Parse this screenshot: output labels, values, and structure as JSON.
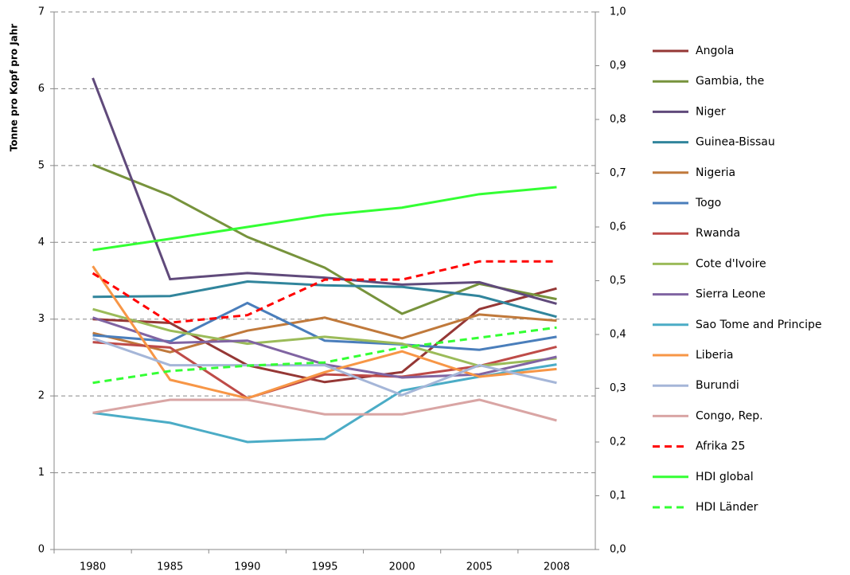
{
  "chart_data": {
    "type": "line",
    "ylabel": "Tonne pro Kopf pro Jahr",
    "categories": [
      "1980",
      "1985",
      "1990",
      "1995",
      "2000",
      "2005",
      "2008"
    ],
    "ylim": [
      0,
      7
    ],
    "yticks": [
      0,
      1,
      2,
      3,
      4,
      5,
      6,
      7
    ],
    "y2lim": [
      0,
      1
    ],
    "y2ticks": [
      {
        "value": 0,
        "label": "0,0"
      },
      {
        "value": 0.1,
        "label": "0,1"
      },
      {
        "value": 0.2,
        "label": "0,2"
      },
      {
        "value": 0.3,
        "label": "0,3"
      },
      {
        "value": 0.4,
        "label": "0,4"
      },
      {
        "value": 0.5,
        "label": "0,5"
      },
      {
        "value": 0.6,
        "label": "0,6"
      },
      {
        "value": 0.7,
        "label": "0,7"
      },
      {
        "value": 0.8,
        "label": "0,8"
      },
      {
        "value": 0.9,
        "label": "0,9"
      },
      {
        "value": 1,
        "label": "1,0"
      }
    ],
    "grid": true,
    "legend": "right",
    "series": [
      {
        "name": "Angola",
        "color": "#953735",
        "values": [
          3.0,
          2.95,
          2.4,
          2.18,
          2.31,
          3.13,
          3.4
        ]
      },
      {
        "name": "Gambia, the",
        "color": "#77933c",
        "values": [
          5.01,
          4.61,
          4.07,
          3.67,
          3.07,
          3.46,
          3.26
        ]
      },
      {
        "name": "Niger",
        "color": "#604a7b",
        "values": [
          6.14,
          3.52,
          3.6,
          3.54,
          3.45,
          3.48,
          3.2
        ]
      },
      {
        "name": "Guinea-Bissau",
        "color": "#31859c",
        "values": [
          3.29,
          3.3,
          3.49,
          3.44,
          3.42,
          3.3,
          3.03
        ]
      },
      {
        "name": "Nigeria",
        "color": "#c0793b",
        "values": [
          2.82,
          2.57,
          2.85,
          3.02,
          2.75,
          3.06,
          2.98
        ]
      },
      {
        "name": "Togo",
        "color": "#4a7ebb",
        "values": [
          2.79,
          2.71,
          3.21,
          2.72,
          2.67,
          2.6,
          2.77
        ]
      },
      {
        "name": "Rwanda",
        "color": "#be4b48",
        "values": [
          2.7,
          2.63,
          1.97,
          2.28,
          2.25,
          2.39,
          2.64
        ]
      },
      {
        "name": "Cote d'Ivoire",
        "color": "#9bbb59",
        "values": [
          3.13,
          2.85,
          2.68,
          2.77,
          2.68,
          2.39,
          2.49
        ]
      },
      {
        "name": "Sierra Leone",
        "color": "#8064a2",
        "values": [
          3.02,
          2.69,
          2.72,
          2.41,
          2.24,
          2.28,
          2.51
        ]
      },
      {
        "name": "Sao Tome and Principe",
        "color": "#4bacc6",
        "values": [
          1.78,
          1.65,
          1.4,
          1.44,
          2.07,
          2.25,
          2.41
        ]
      },
      {
        "name": "Liberia",
        "color": "#f79646",
        "values": [
          3.69,
          2.21,
          1.97,
          2.31,
          2.58,
          2.25,
          2.35
        ]
      },
      {
        "name": "Burundi",
        "color": "#a5b6d8",
        "values": [
          2.75,
          2.4,
          2.4,
          2.4,
          2.01,
          2.4,
          2.17
        ]
      },
      {
        "name": "Congo, Rep.",
        "color": "#d9a5a4",
        "values": [
          1.78,
          1.95,
          1.95,
          1.76,
          1.76,
          1.95,
          1.68
        ]
      },
      {
        "name": "Afrika 25",
        "color": "#ff0000",
        "dashed": true,
        "axis": "y2",
        "values": [
          0.514,
          0.422,
          0.436,
          0.502,
          0.502,
          0.536,
          0.536
        ]
      },
      {
        "name": "HDI global",
        "color": "#33ff33",
        "axis": "y2",
        "values": [
          0.557,
          0.578,
          0.6,
          0.622,
          0.636,
          0.661,
          0.674
        ]
      },
      {
        "name": "HDI Länder",
        "color": "#33ff33",
        "dashed": true,
        "axis": "y2",
        "values": [
          0.31,
          0.332,
          0.342,
          0.348,
          0.376,
          0.394,
          0.413
        ]
      }
    ]
  }
}
